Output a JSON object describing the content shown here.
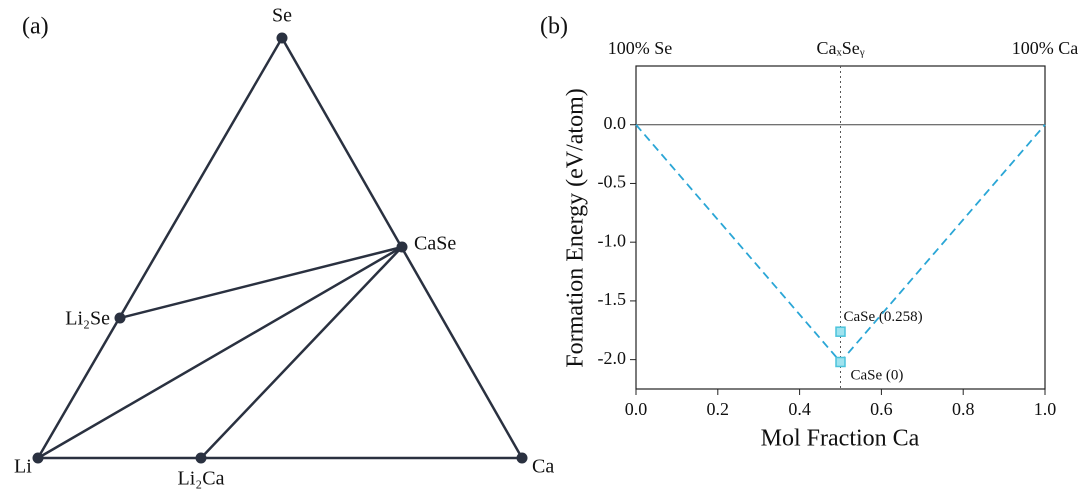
{
  "panel_a": {
    "label": "(a)",
    "nodes": [
      "Se",
      "CaSe",
      "Li₂Se",
      "Li",
      "Li₂Ca",
      "Ca"
    ]
  },
  "chart_data": {
    "type": "line",
    "label": "(b)",
    "top_labels": [
      "100% Se",
      "CaₓSeᵧ",
      "100% Ca"
    ],
    "xlabel": "Mol Fraction Ca",
    "ylabel": "Formation Energy (eV/atom)",
    "xlim": [
      0,
      1
    ],
    "xticks": [
      {
        "value": 0,
        "label": "0.0"
      },
      0.2,
      0.4,
      0.6,
      0.8,
      {
        "value": 1,
        "label": "1.0"
      }
    ],
    "ylim": [
      -2.25,
      0.5
    ],
    "yticks": [
      {
        "value": 0,
        "label": "0.0"
      },
      -0.5,
      {
        "value": -1,
        "label": "-1.0"
      },
      -1.5,
      {
        "value": -2,
        "label": "-2.0"
      }
    ],
    "series": [
      {
        "color": "#2aa6d6",
        "x": [
          0,
          0.5,
          1
        ],
        "values": [
          0,
          -2.02,
          0
        ]
      }
    ],
    "points": {
      "color": "#4cc3dc",
      "x": [
        0.5,
        0.5
      ],
      "values": [
        -2.02,
        -1.762
      ],
      "labels": [
        "CaSe (0)",
        "CaSe (0.258)"
      ]
    }
  }
}
